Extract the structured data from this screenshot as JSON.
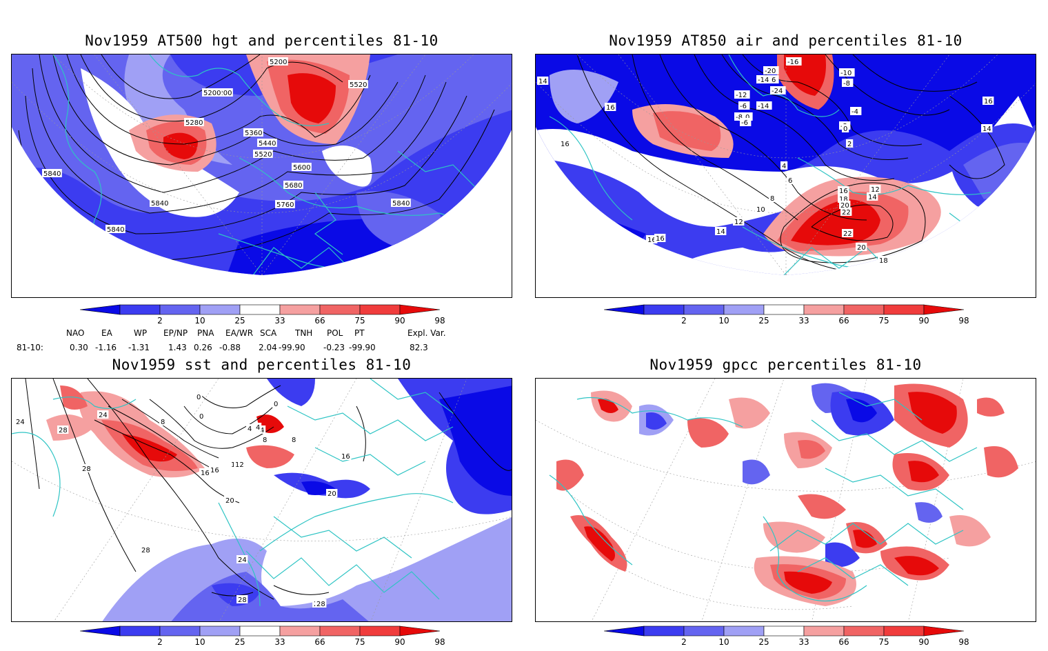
{
  "panels": {
    "hgt": {
      "title": "Nov1959 AT500 hgt and percentiles 81-10",
      "contour_labels": [
        "5200",
        "5200",
        "5520",
        "5200",
        "5280",
        "5360",
        "5440",
        "5520",
        "5600",
        "5680",
        "5760",
        "5840",
        "5840",
        "5840",
        "5840"
      ]
    },
    "air": {
      "title": "Nov1959 AT850 air and percentiles 81-10",
      "contour_labels": [
        "14",
        "-16",
        "-20",
        "-16",
        "-14",
        "-10",
        "-8",
        "-12",
        "-24",
        "-6",
        "-10",
        "-14",
        "-4",
        "-8",
        "-6",
        "-2",
        "0",
        "16",
        "16",
        "14",
        "16",
        "2",
        "4",
        "6",
        "8",
        "10",
        "12",
        "14",
        "16",
        "12",
        "14",
        "16",
        "18",
        "20",
        "22",
        "22",
        "20",
        "18",
        "16"
      ]
    },
    "sst": {
      "title": "Nov1959 sst and percentiles 81-10",
      "contour_labels": [
        "24",
        "28",
        "24",
        "28",
        "28",
        "8",
        "0",
        "4",
        "4",
        "8",
        "16",
        "20",
        "20",
        "24",
        "28",
        "28",
        "28",
        "12",
        "16",
        "0",
        "0",
        "4",
        "8",
        "12",
        "16"
      ]
    },
    "gpcc": {
      "title": "Nov1959 gpcc percentiles 81-10"
    }
  },
  "colorbar": {
    "ticks": [
      "2",
      "10",
      "25",
      "33",
      "66",
      "75",
      "90",
      "98"
    ],
    "colors": [
      "#0a0ae6",
      "#3c3cf0",
      "#6464f0",
      "#a0a0f5",
      "#ffffff",
      "#f5a0a0",
      "#f06464",
      "#f03c3c",
      "#e60a0a"
    ]
  },
  "indices": {
    "headers": [
      "NAO",
      "EA",
      "WP",
      "EP/NP",
      "PNA",
      "EA/WR",
      "SCA",
      "TNH",
      "POL",
      "PT",
      "Expl. Var."
    ],
    "row_label": "81-10:",
    "values": [
      "0.30",
      "-1.16",
      "-1.31",
      "1.43",
      "0.26",
      "-0.88",
      "2.04",
      "-99.90",
      "-0.23",
      "-99.90",
      "82.3"
    ]
  }
}
